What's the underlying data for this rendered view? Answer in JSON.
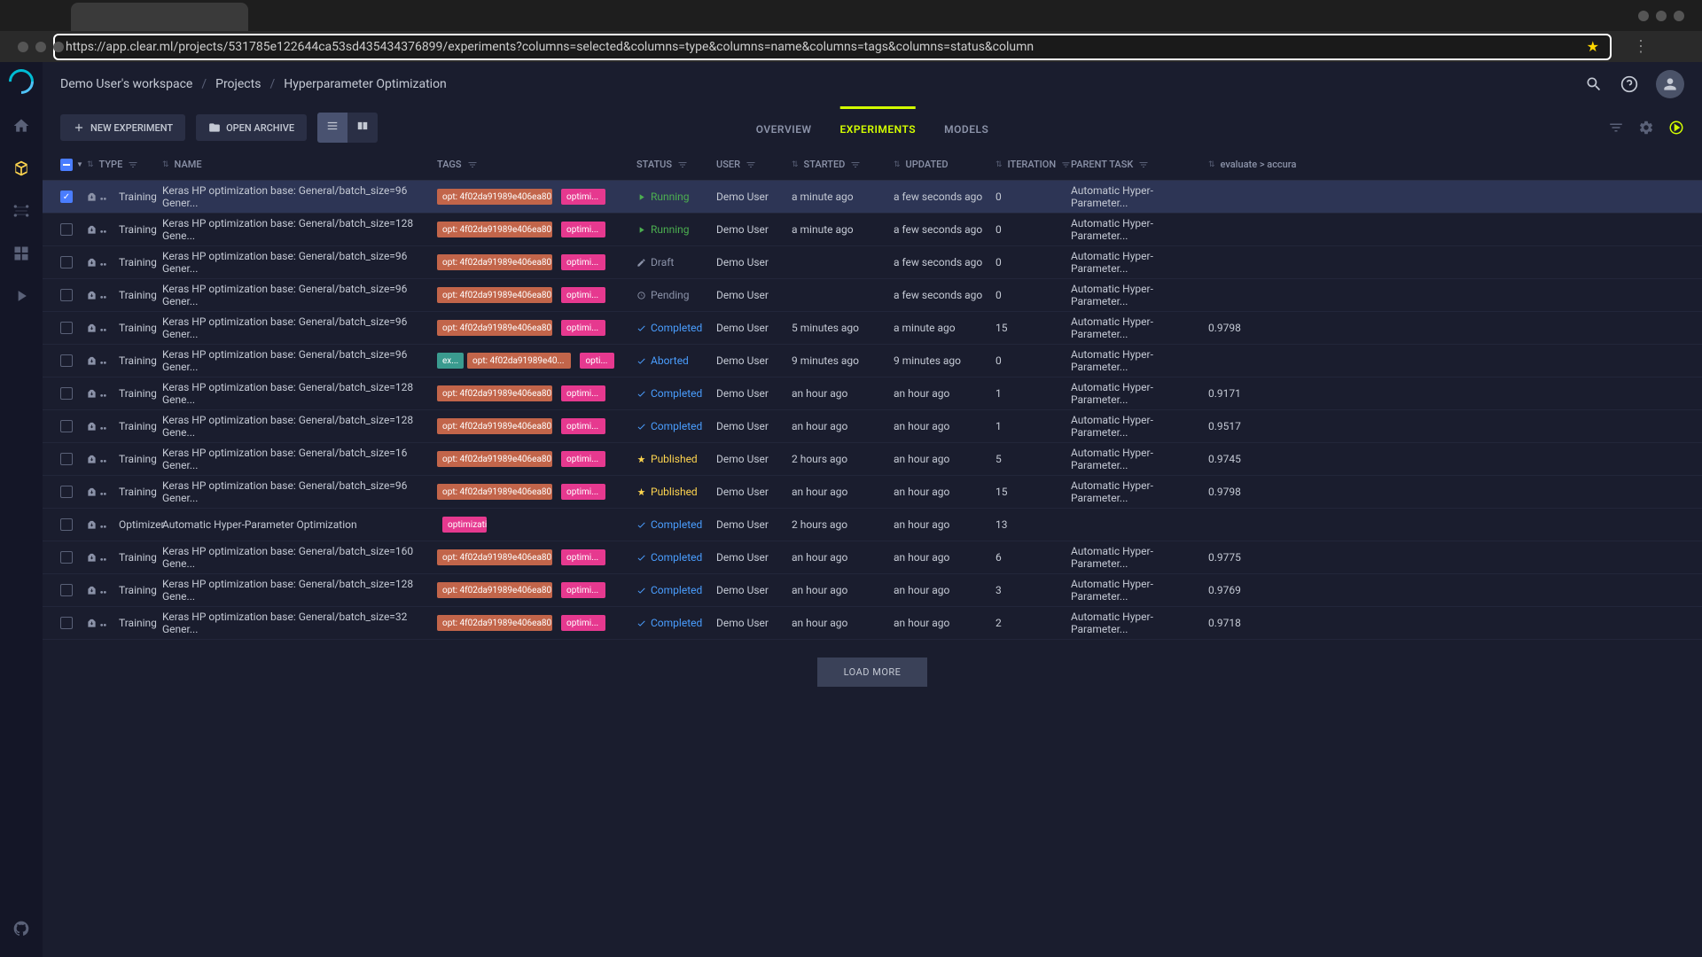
{
  "url": "https://app.clear.ml/projects/531785e122644ca53sd435434376899/experiments?columns=selected&columns=type&columns=name&columns=tags&columns=status&column",
  "breadcrumb": {
    "workspace": "Demo User's workspace",
    "projects": "Projects",
    "project": "Hyperparameter Optimization"
  },
  "toolbar": {
    "new_experiment": "NEW EXPERIMENT",
    "open_archive": "OPEN ARCHIVE"
  },
  "tabs": {
    "overview": "OVERVIEW",
    "experiments": "EXPERIMENTS",
    "models": "MODELS"
  },
  "columns": {
    "type": "TYPE",
    "name": "NAME",
    "tags": "TAGS",
    "status": "STATUS",
    "user": "USER",
    "started": "STARTED",
    "updated": "UPDATED",
    "iteration": "ITERATION",
    "parent": "PARENT TASK",
    "evaluate": "evaluate > accura"
  },
  "load_more": "LOAD MORE",
  "rows": [
    {
      "selected": true,
      "type": "Training",
      "name": "Keras HP optimization base: General/batch_size=96 Gener...",
      "tags": [
        {
          "c": "orange",
          "t": "opt: 4f02da91989e406ea805c..."
        },
        {
          "c": "pink",
          "t": "optimi..."
        }
      ],
      "status": "Running",
      "user": "Demo User",
      "started": "a minute ago",
      "updated": "a few seconds ago",
      "iteration": "0",
      "parent": "Automatic Hyper-Parameter...",
      "eval": ""
    },
    {
      "selected": false,
      "type": "Training",
      "name": "Keras HP optimization base: General/batch_size=128 Gene...",
      "tags": [
        {
          "c": "orange",
          "t": "opt: 4f02da91989e406ea805c..."
        },
        {
          "c": "pink",
          "t": "optimi..."
        }
      ],
      "status": "Running",
      "user": "Demo User",
      "started": "a minute ago",
      "updated": "a few seconds ago",
      "iteration": "0",
      "parent": "Automatic Hyper-Parameter...",
      "eval": ""
    },
    {
      "selected": false,
      "type": "Training",
      "name": "Keras HP optimization base: General/batch_size=96 Gener...",
      "tags": [
        {
          "c": "orange",
          "t": "opt: 4f02da91989e406ea805c..."
        },
        {
          "c": "pink",
          "t": "optimi..."
        }
      ],
      "status": "Draft",
      "user": "Demo User",
      "started": "",
      "updated": "a few seconds ago",
      "iteration": "0",
      "parent": "Automatic Hyper-Parameter...",
      "eval": ""
    },
    {
      "selected": false,
      "type": "Training",
      "name": "Keras HP optimization base: General/batch_size=96 Gener...",
      "tags": [
        {
          "c": "orange",
          "t": "opt: 4f02da91989e406ea805c..."
        },
        {
          "c": "pink",
          "t": "optimi..."
        }
      ],
      "status": "Pending",
      "user": "Demo User",
      "started": "",
      "updated": "a few seconds ago",
      "iteration": "0",
      "parent": "Automatic Hyper-Parameter...",
      "eval": ""
    },
    {
      "selected": false,
      "type": "Training",
      "name": "Keras HP optimization base: General/batch_size=96 Gener...",
      "tags": [
        {
          "c": "orange",
          "t": "opt: 4f02da91989e406ea805c..."
        },
        {
          "c": "pink",
          "t": "optimi..."
        }
      ],
      "status": "Completed",
      "user": "Demo User",
      "started": "5 minutes ago",
      "updated": "a minute ago",
      "iteration": "15",
      "parent": "Automatic Hyper-Parameter...",
      "eval": "0.9798"
    },
    {
      "selected": false,
      "type": "Training",
      "name": "Keras HP optimization base: General/batch_size=96 Gener...",
      "tags": [
        {
          "c": "teal",
          "t": "ex..."
        },
        {
          "c": "orange",
          "t": "opt: 4f02da91989e40..."
        },
        {
          "c": "pink",
          "t": "opti..."
        }
      ],
      "status": "Aborted",
      "user": "Demo User",
      "started": "9 minutes ago",
      "updated": "9 minutes ago",
      "iteration": "0",
      "parent": "Automatic Hyper-Parameter...",
      "eval": ""
    },
    {
      "selected": false,
      "type": "Training",
      "name": "Keras HP optimization base: General/batch_size=128 Gene...",
      "tags": [
        {
          "c": "orange",
          "t": "opt: 4f02da91989e406ea805c..."
        },
        {
          "c": "pink",
          "t": "optimi..."
        }
      ],
      "status": "Completed",
      "user": "Demo User",
      "started": "an hour ago",
      "updated": "an hour ago",
      "iteration": "1",
      "parent": "Automatic Hyper-Parameter...",
      "eval": "0.9171"
    },
    {
      "selected": false,
      "type": "Training",
      "name": "Keras HP optimization base: General/batch_size=128 Gene...",
      "tags": [
        {
          "c": "orange",
          "t": "opt: 4f02da91989e406ea805c..."
        },
        {
          "c": "pink",
          "t": "optimi..."
        }
      ],
      "status": "Completed",
      "user": "Demo User",
      "started": "an hour ago",
      "updated": "an hour ago",
      "iteration": "1",
      "parent": "Automatic Hyper-Parameter...",
      "eval": "0.9517"
    },
    {
      "selected": false,
      "type": "Training",
      "name": "Keras HP optimization base: General/batch_size=16 Gener...",
      "tags": [
        {
          "c": "orange",
          "t": "opt: 4f02da91989e406ea805c..."
        },
        {
          "c": "pink",
          "t": "optimi..."
        }
      ],
      "status": "Published",
      "user": "Demo User",
      "started": "2 hours ago",
      "updated": "an hour ago",
      "iteration": "5",
      "parent": "Automatic Hyper-Parameter...",
      "eval": "0.9745"
    },
    {
      "selected": false,
      "type": "Training",
      "name": "Keras HP optimization base: General/batch_size=96 Gener...",
      "tags": [
        {
          "c": "orange",
          "t": "opt: 4f02da91989e406ea805c..."
        },
        {
          "c": "pink",
          "t": "optimi..."
        }
      ],
      "status": "Published",
      "user": "Demo User",
      "started": "an hour ago",
      "updated": "an hour ago",
      "iteration": "15",
      "parent": "Automatic Hyper-Parameter...",
      "eval": "0.9798"
    },
    {
      "selected": false,
      "type": "Optimizer",
      "name": "Automatic Hyper-Parameter Optimization",
      "tags": [
        {
          "c": "pink",
          "t": "optimization"
        }
      ],
      "status": "Completed",
      "user": "Demo User",
      "started": "2 hours ago",
      "updated": "an hour ago",
      "iteration": "13",
      "parent": "",
      "eval": ""
    },
    {
      "selected": false,
      "type": "Training",
      "name": "Keras HP optimization base: General/batch_size=160 Gene...",
      "tags": [
        {
          "c": "orange",
          "t": "opt: 4f02da91989e406ea805c..."
        },
        {
          "c": "pink",
          "t": "optimi..."
        }
      ],
      "status": "Completed",
      "user": "Demo User",
      "started": "an hour ago",
      "updated": "an hour ago",
      "iteration": "6",
      "parent": "Automatic Hyper-Parameter...",
      "eval": "0.9775"
    },
    {
      "selected": false,
      "type": "Training",
      "name": "Keras HP optimization base: General/batch_size=128 Gene...",
      "tags": [
        {
          "c": "orange",
          "t": "opt: 4f02da91989e406ea805c..."
        },
        {
          "c": "pink",
          "t": "optimi..."
        }
      ],
      "status": "Completed",
      "user": "Demo User",
      "started": "an hour ago",
      "updated": "an hour ago",
      "iteration": "3",
      "parent": "Automatic Hyper-Parameter...",
      "eval": "0.9769"
    },
    {
      "selected": false,
      "type": "Training",
      "name": "Keras HP optimization base: General/batch_size=32 Gener...",
      "tags": [
        {
          "c": "orange",
          "t": "opt: 4f02da91989e406ea805c..."
        },
        {
          "c": "pink",
          "t": "optimi..."
        }
      ],
      "status": "Completed",
      "user": "Demo User",
      "started": "an hour ago",
      "updated": "an hour ago",
      "iteration": "2",
      "parent": "Automatic Hyper-Parameter...",
      "eval": "0.9718"
    }
  ]
}
